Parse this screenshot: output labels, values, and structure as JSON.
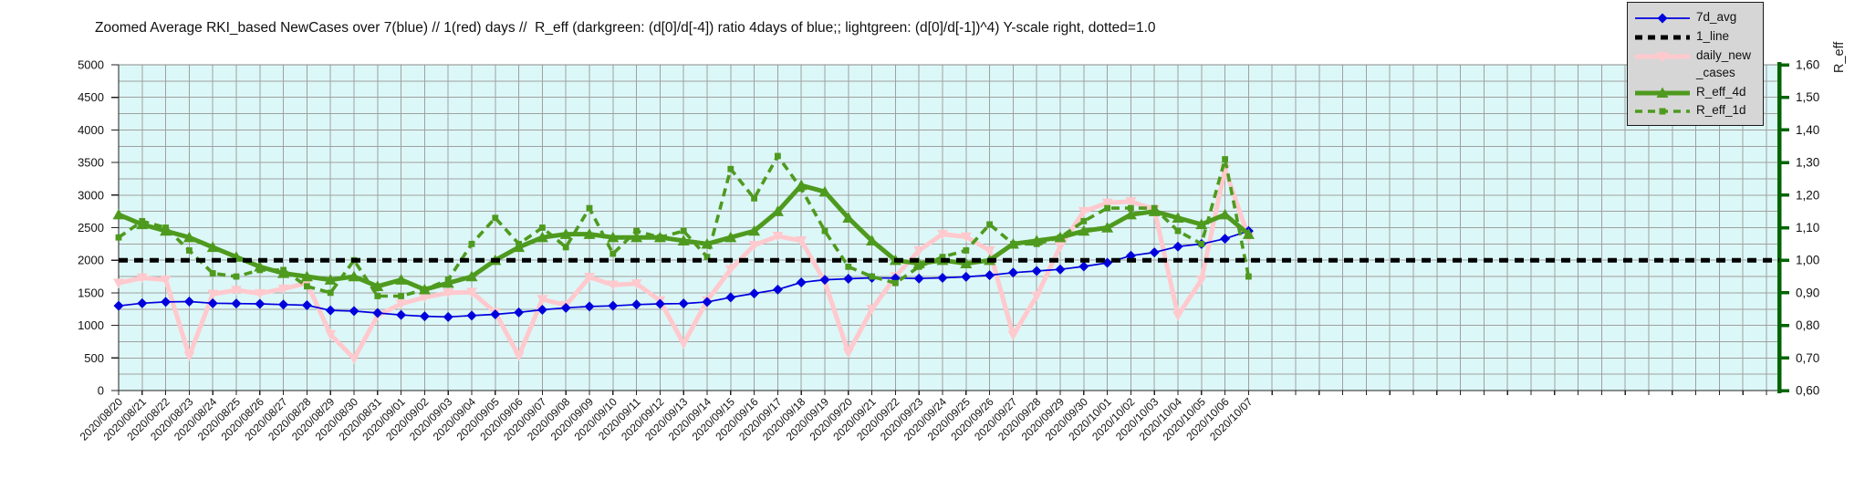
{
  "title": "Zoomed Average RKI_based NewCases over 7(blue) // 1(red) days //  R_eff (darkgreen: (d[0]/d[-4]) ratio 4days of blue;; lightgreen: (d[0]/d[-1])^4) Y-scale right, dotted=1.0",
  "right_axis_label": "R_eff",
  "colors": {
    "blue": "#0000dd",
    "pink": "#ffc9cd",
    "green": "#4e9a1e",
    "dark_green": "#006400",
    "black": "#000000",
    "plot_bg": "#dcf7f7",
    "grid": "#a0a0a0",
    "legend_bg": "#d6d6d6"
  },
  "legend": {
    "items": [
      {
        "label": "7d_avg",
        "color": "#0000dd",
        "style": "solid-thin",
        "marker": "diamond"
      },
      {
        "label": "1_line",
        "color": "#000000",
        "style": "dashed-thick",
        "marker": "none"
      },
      {
        "label": "daily_new\n_cases",
        "color": "#ffc9cd",
        "style": "solid-thick",
        "marker": "triangle-down"
      },
      {
        "label": "R_eff_4d",
        "color": "#4e9a1e",
        "style": "solid-thick",
        "marker": "triangle-up"
      },
      {
        "label": "R_eff_1d",
        "color": "#4e9a1e",
        "style": "dashed",
        "marker": "square"
      }
    ]
  },
  "chart_data": {
    "type": "line",
    "title": "Zoomed Average RKI_based NewCases over 7(blue) // 1(red) days //  R_eff (darkgreen: (d[0]/d[-4]) ratio 4days of blue;; lightgreen: (d[0]/d[-1])^4) Y-scale right, dotted=1.0",
    "grid": true,
    "legend_position": "top-right",
    "x_dates": [
      "2020/08/20",
      "2020/08/21",
      "2020/08/22",
      "2020/08/23",
      "2020/08/24",
      "2020/08/25",
      "2020/08/26",
      "2020/08/27",
      "2020/08/28",
      "2020/08/29",
      "2020/08/30",
      "2020/08/31",
      "2020/09/01",
      "2020/09/02",
      "2020/09/03",
      "2020/09/04",
      "2020/09/05",
      "2020/09/06",
      "2020/09/07",
      "2020/09/08",
      "2020/09/09",
      "2020/09/10",
      "2020/09/11",
      "2020/09/12",
      "2020/09/13",
      "2020/09/14",
      "2020/09/15",
      "2020/09/16",
      "2020/09/17",
      "2020/09/18",
      "2020/09/19",
      "2020/09/20",
      "2020/09/21",
      "2020/09/22",
      "2020/09/23",
      "2020/09/24",
      "2020/09/25",
      "2020/09/26",
      "2020/09/27",
      "2020/09/28",
      "2020/09/29",
      "2020/09/30",
      "2020/10/01",
      "2020/10/02",
      "2020/10/03",
      "2020/10/04",
      "2020/10/05",
      "2020/10/06",
      "2020/10/07"
    ],
    "left_axis": {
      "range": [
        0,
        5000
      ],
      "tick_step": 500,
      "grid_step": 250,
      "tick_labels": [
        "0",
        "500",
        "1000",
        "1500",
        "2000",
        "2500",
        "3000",
        "3500",
        "4000",
        "4500",
        "5000"
      ]
    },
    "right_axis": {
      "label": "R_eff",
      "range": [
        0.6,
        1.6
      ],
      "tick_step": 0.1,
      "tick_labels": [
        "0,60",
        "0,70",
        "0,80",
        "0,90",
        "1,00",
        "1,10",
        "1,20",
        "1,30",
        "1,40",
        "1,50",
        "1,60"
      ],
      "relation": "R_eff = left_value/5000 + 0.60"
    },
    "series": [
      {
        "name": "7d_avg",
        "axis": "left",
        "color": "#0000dd",
        "style": "solid",
        "marker": "diamond",
        "values": [
          1300,
          1340,
          1360,
          1365,
          1340,
          1335,
          1330,
          1320,
          1310,
          1230,
          1220,
          1190,
          1160,
          1140,
          1130,
          1150,
          1170,
          1200,
          1240,
          1270,
          1290,
          1300,
          1320,
          1330,
          1335,
          1360,
          1430,
          1490,
          1550,
          1660,
          1700,
          1715,
          1730,
          1725,
          1720,
          1730,
          1745,
          1770,
          1810,
          1835,
          1860,
          1905,
          1960,
          2070,
          2120,
          2210,
          2250,
          2330,
          2450
        ]
      },
      {
        "name": "1_line",
        "axis": "right",
        "color": "#000000",
        "style": "dashed",
        "marker": "none",
        "constant": 1.0
      },
      {
        "name": "daily_new_cases",
        "axis": "left",
        "color": "#ffc9cd",
        "style": "solid",
        "marker": "triangle-down",
        "values": [
          1650,
          1730,
          1700,
          530,
          1480,
          1540,
          1490,
          1560,
          1650,
          860,
          490,
          1150,
          1330,
          1430,
          1500,
          1510,
          1200,
          530,
          1400,
          1310,
          1740,
          1620,
          1640,
          1380,
          720,
          1380,
          1860,
          2230,
          2370,
          2300,
          1670,
          580,
          1250,
          1750,
          2150,
          2400,
          2360,
          2150,
          850,
          1450,
          2210,
          2750,
          2880,
          2900,
          2780,
          1150,
          1700,
          3400,
          2350
        ]
      },
      {
        "name": "R_eff_4d",
        "axis": "right",
        "color": "#4e9a1e",
        "style": "solid",
        "marker": "triangle-up",
        "values": [
          1.14,
          1.11,
          1.09,
          1.07,
          1.04,
          1.01,
          0.98,
          0.96,
          0.95,
          0.94,
          0.95,
          0.92,
          0.94,
          0.91,
          0.93,
          0.95,
          1.0,
          1.04,
          1.07,
          1.08,
          1.08,
          1.07,
          1.07,
          1.07,
          1.06,
          1.05,
          1.07,
          1.09,
          1.15,
          1.23,
          1.21,
          1.13,
          1.06,
          1.0,
          0.99,
          1.0,
          0.99,
          1.0,
          1.05,
          1.06,
          1.07,
          1.09,
          1.1,
          1.14,
          1.15,
          1.13,
          1.11,
          1.14,
          1.08
        ]
      },
      {
        "name": "R_eff_1d",
        "axis": "right",
        "color": "#4e9a1e",
        "style": "dashed",
        "marker": "square",
        "values": [
          1.07,
          1.12,
          1.1,
          1.03,
          0.96,
          0.95,
          0.97,
          0.97,
          0.92,
          0.9,
          1.0,
          0.89,
          0.89,
          0.91,
          0.94,
          1.05,
          1.13,
          1.05,
          1.1,
          1.04,
          1.16,
          1.02,
          1.09,
          1.07,
          1.09,
          1.01,
          1.28,
          1.19,
          1.32,
          1.22,
          1.09,
          0.98,
          0.95,
          0.93,
          0.98,
          1.01,
          1.03,
          1.11,
          1.05,
          1.05,
          1.07,
          1.12,
          1.16,
          1.16,
          1.16,
          1.09,
          1.05,
          1.31,
          0.95
        ]
      }
    ]
  }
}
